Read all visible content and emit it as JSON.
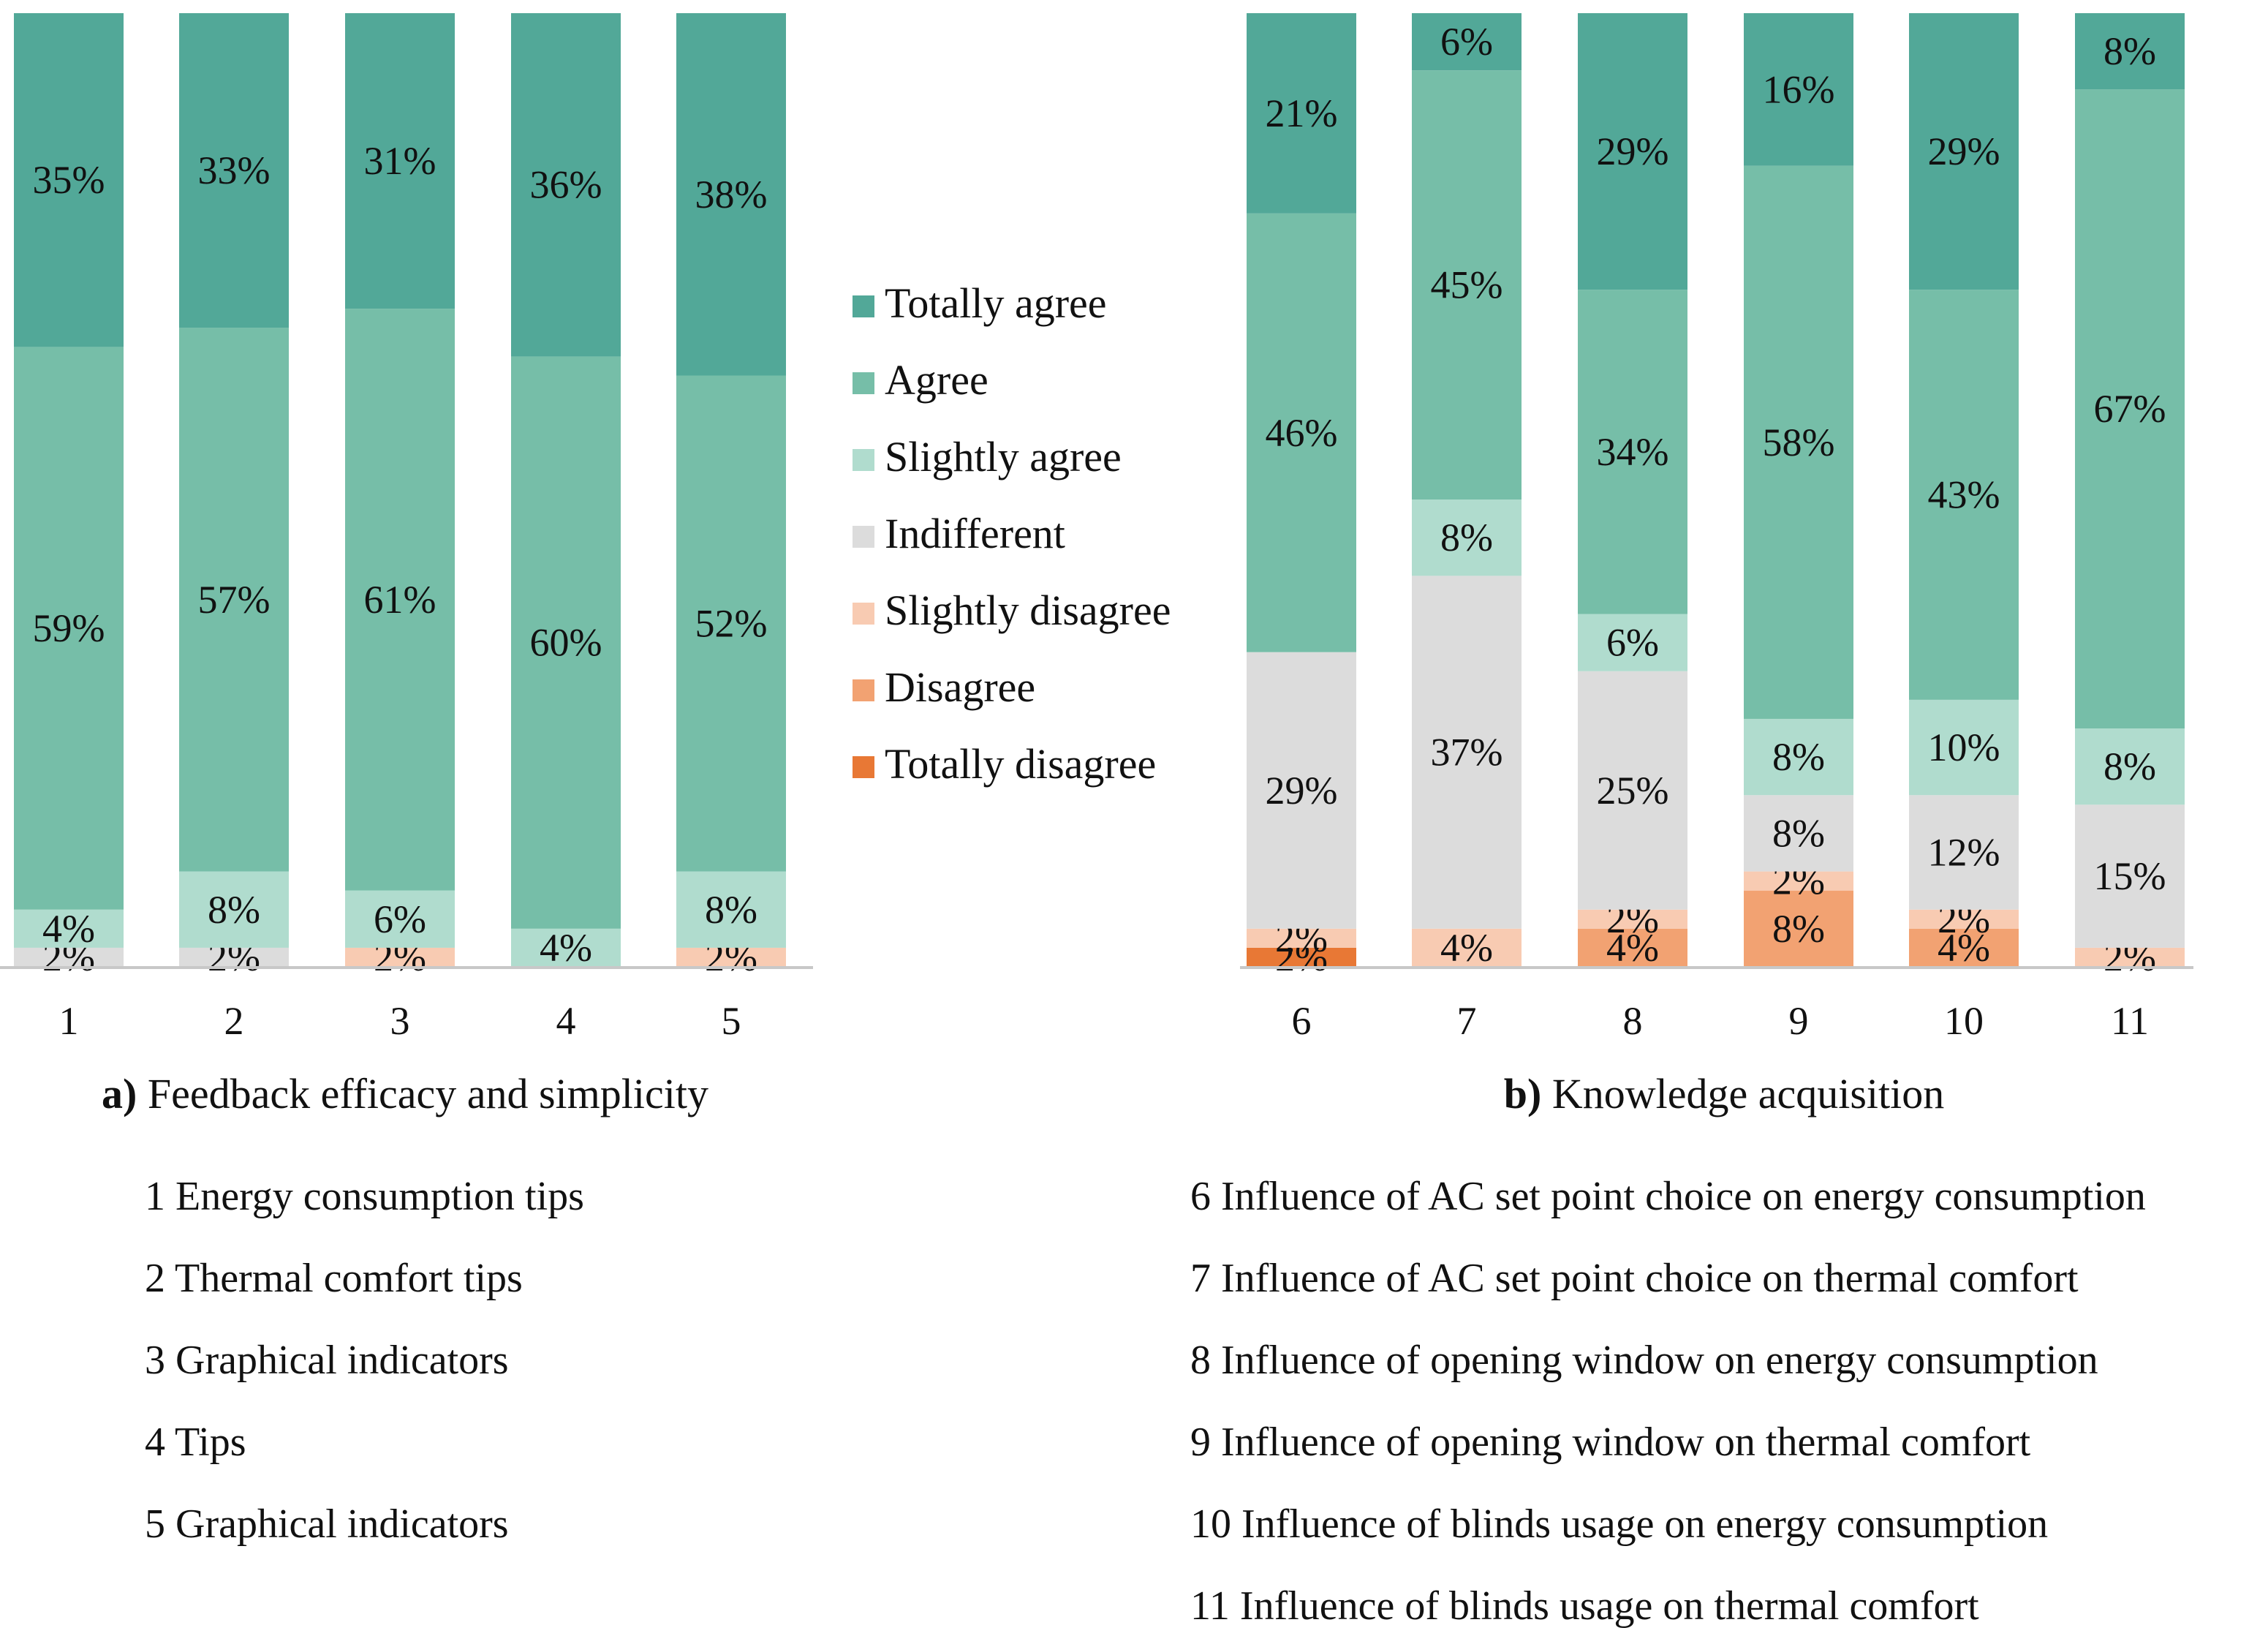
{
  "chart_data": [
    {
      "type": "bar",
      "stacked": true,
      "percent": true,
      "title_prefix": "a)",
      "title": "Feedback efficacy and simplicity",
      "categories": [
        "1",
        "2",
        "3",
        "4",
        "5"
      ],
      "category_descriptions": [
        "1 Energy consumption tips",
        "2 Thermal comfort tips",
        "3 Graphical indicators",
        "4 Tips",
        "5 Graphical indicators"
      ],
      "series": [
        {
          "name": "Totally disagree",
          "values": [
            0,
            0,
            0,
            0,
            0
          ]
        },
        {
          "name": "Disagree",
          "values": [
            0,
            0,
            0,
            0,
            0
          ]
        },
        {
          "name": "Slightly disagree",
          "values": [
            0,
            0,
            2,
            0,
            2
          ]
        },
        {
          "name": "Indifferent",
          "values": [
            2,
            2,
            0,
            0,
            0
          ]
        },
        {
          "name": "Slightly agree",
          "values": [
            4,
            8,
            6,
            4,
            8
          ]
        },
        {
          "name": "Agree",
          "values": [
            59,
            57,
            61,
            60,
            52
          ]
        },
        {
          "name": "Totally agree",
          "values": [
            35,
            33,
            31,
            36,
            38
          ]
        }
      ],
      "ylim": [
        0,
        100
      ]
    },
    {
      "type": "bar",
      "stacked": true,
      "percent": true,
      "title_prefix": "b)",
      "title": "Knowledge acquisition",
      "categories": [
        "6",
        "7",
        "8",
        "9",
        "10",
        "11"
      ],
      "category_descriptions": [
        "6 Influence of AC set point choice on energy consumption",
        "7 Influence of AC set point choice on thermal comfort",
        "8 Influence of opening window on energy consumption",
        "9 Influence of opening window on thermal comfort",
        "10 Influence of blinds usage on energy consumption",
        "11 Influence of blinds usage on thermal comfort"
      ],
      "series": [
        {
          "name": "Totally disagree",
          "values": [
            2,
            0,
            0,
            0,
            0,
            0
          ]
        },
        {
          "name": "Disagree",
          "values": [
            0,
            0,
            4,
            8,
            4,
            0
          ]
        },
        {
          "name": "Slightly disagree",
          "values": [
            2,
            4,
            2,
            2,
            2,
            2
          ]
        },
        {
          "name": "Indifferent",
          "values": [
            29,
            37,
            25,
            8,
            12,
            15
          ]
        },
        {
          "name": "Slightly agree",
          "values": [
            0,
            8,
            6,
            8,
            10,
            8
          ]
        },
        {
          "name": "Agree",
          "values": [
            46,
            45,
            34,
            58,
            43,
            67
          ]
        },
        {
          "name": "Totally agree",
          "values": [
            21,
            6,
            29,
            16,
            29,
            8
          ]
        }
      ],
      "ylim": [
        0,
        100
      ]
    }
  ],
  "legend": {
    "position": "center",
    "items": [
      {
        "name": "Totally agree",
        "color": "#52a898"
      },
      {
        "name": "Agree",
        "color": "#76bea8"
      },
      {
        "name": "Slightly agree",
        "color": "#b0dcce"
      },
      {
        "name": "Indifferent",
        "color": "#dcdcdc"
      },
      {
        "name": "Slightly disagree",
        "color": "#f8cbb2"
      },
      {
        "name": "Disagree",
        "color": "#f2a272"
      },
      {
        "name": "Totally disagree",
        "color": "#e87835"
      }
    ]
  }
}
